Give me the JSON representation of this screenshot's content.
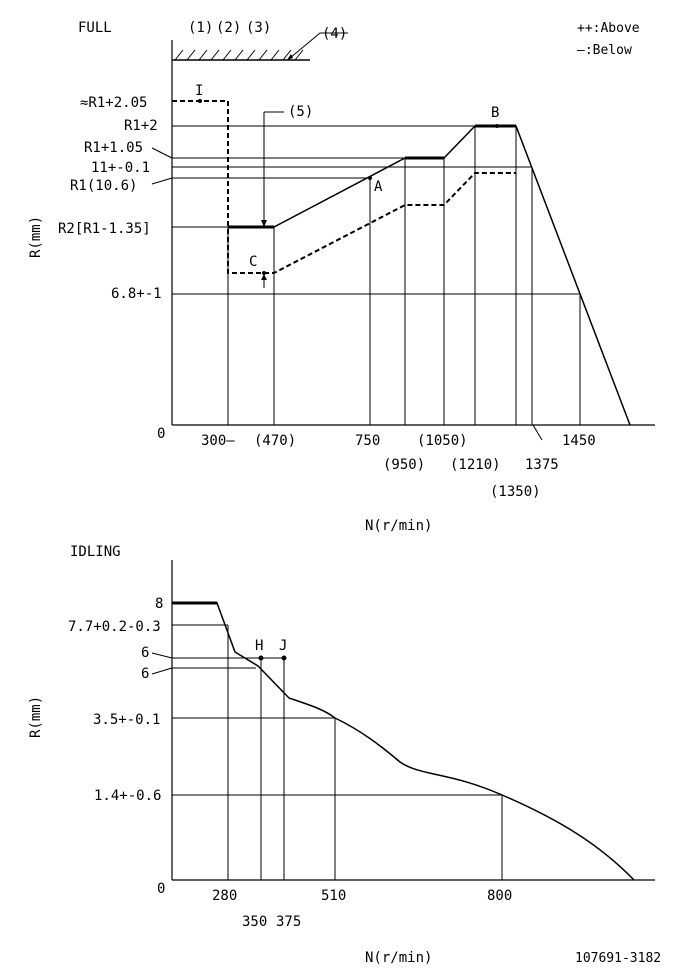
{
  "full": {
    "title": "FULL",
    "legend": {
      "above": "++:Above",
      "below": "—:Below"
    },
    "notes": [
      "(1)",
      "(2)",
      "(3)",
      "(4)",
      "(5)"
    ],
    "axis_x_label": "N(r/min)",
    "axis_y_label": "R(mm)",
    "origin": "0",
    "y_labels": [
      "≈R1+2.05",
      "R1+2",
      "R1+1.05",
      "11+-0.1",
      "R1(10.6)",
      "R2[R1-1.35]",
      "6.8+-1"
    ],
    "x_labels": [
      "300—",
      "(470)",
      "750",
      "(950)",
      "(1050)",
      "(1210)",
      "(1350)",
      "1375",
      "1450"
    ],
    "points": [
      "I",
      "A",
      "B",
      "C"
    ],
    "speeds": [
      300,
      470,
      750,
      950,
      1050,
      1210,
      1350,
      1375,
      1450
    ]
  },
  "idling": {
    "title": "IDLING",
    "axis_x_label": "N(r/min)",
    "axis_y_label": "R(mm)",
    "origin": "0",
    "y_labels": [
      "8",
      "7.7+0.2-0.3",
      "6",
      "6",
      "3.5+-0.1",
      "1.4+-0.6"
    ],
    "x_labels": [
      "280",
      "350",
      "375",
      "510",
      "800"
    ],
    "points": [
      "H",
      "J"
    ],
    "speeds": [
      280,
      350,
      375,
      510,
      800
    ]
  },
  "doc_id": "107691-3182"
}
